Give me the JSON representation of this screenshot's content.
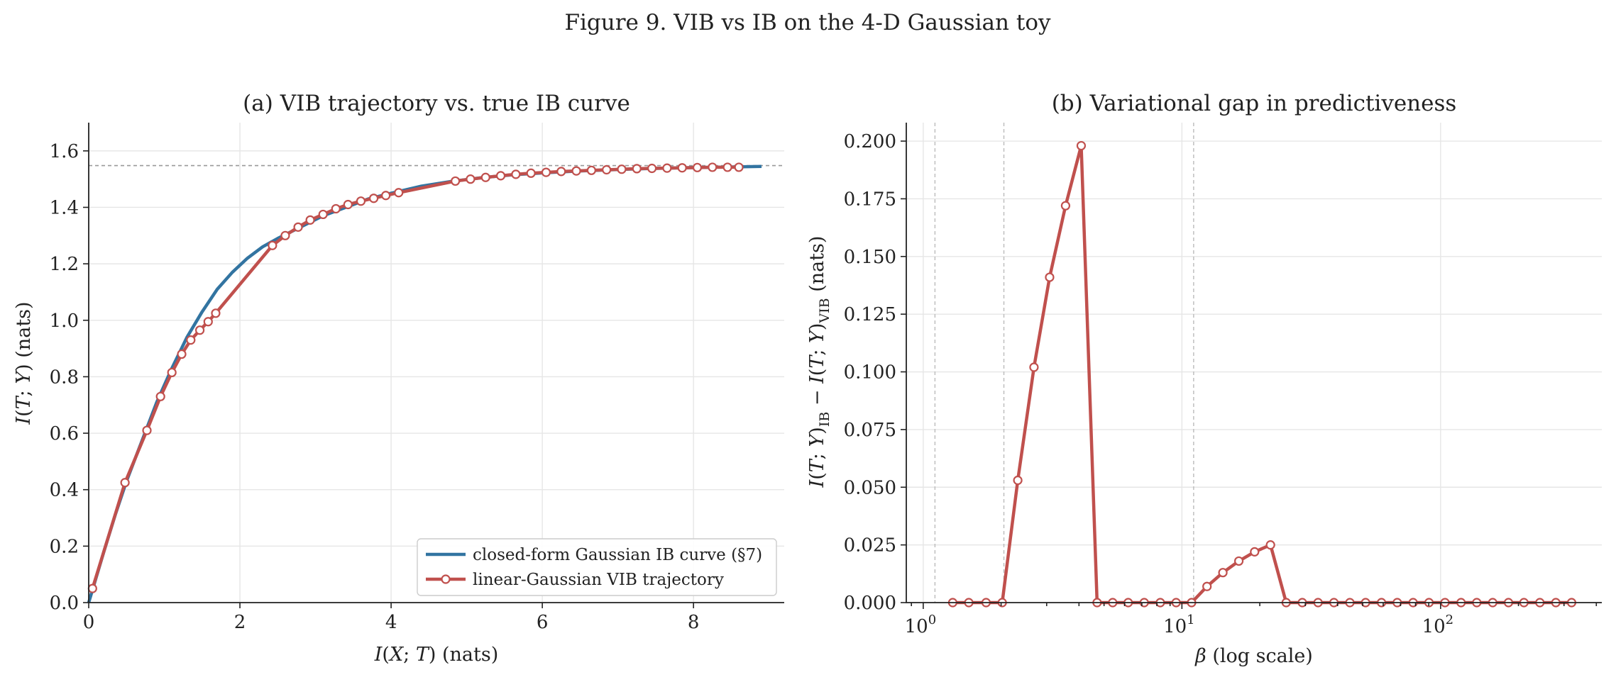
{
  "figure": {
    "suptitle": "Figure 9. VIB vs IB on the 4-D Gaussian toy"
  },
  "colors": {
    "ib_curve": "#3274a1",
    "vib_line": "#c0504d",
    "marker_face": "#ffffff",
    "ref_line": "#999999",
    "vline": "#bbbbbb"
  },
  "chart_data": [
    {
      "type": "line",
      "title": "(a) VIB trajectory vs. true IB curve",
      "xlabel": "I(X;T)  (nats)",
      "ylabel": "I(T;Y)  (nats)",
      "xlim": [
        0,
        9.2
      ],
      "ylim": [
        0,
        1.7
      ],
      "xticks": [
        0,
        2,
        4,
        6,
        8
      ],
      "xtick_labels": [
        "0",
        "2",
        "4",
        "6",
        "8"
      ],
      "yticks": [
        0.0,
        0.2,
        0.4,
        0.6,
        0.8,
        1.0,
        1.2,
        1.4,
        1.6
      ],
      "ytick_labels": [
        "0.0",
        "0.2",
        "0.4",
        "0.6",
        "0.8",
        "1.0",
        "1.2",
        "1.4",
        "1.6"
      ],
      "grid": true,
      "legend_position": "lower-right",
      "hline": 1.548,
      "series": [
        {
          "name": "closed-form Gaussian IB curve (§7)",
          "style": "line",
          "x": [
            0,
            0.1,
            0.2,
            0.35,
            0.5,
            0.7,
            0.9,
            1.1,
            1.3,
            1.5,
            1.7,
            1.9,
            2.1,
            2.3,
            2.5,
            2.8,
            3.1,
            3.4,
            3.7,
            4.0,
            4.4,
            4.8,
            5.2,
            5.6,
            6.0,
            6.5,
            7.0,
            7.5,
            8.0,
            8.5,
            8.9
          ],
          "y": [
            0,
            0.09,
            0.18,
            0.31,
            0.43,
            0.57,
            0.71,
            0.83,
            0.94,
            1.03,
            1.11,
            1.17,
            1.22,
            1.26,
            1.29,
            1.33,
            1.37,
            1.4,
            1.43,
            1.45,
            1.475,
            1.492,
            1.505,
            1.515,
            1.522,
            1.529,
            1.534,
            1.538,
            1.541,
            1.543,
            1.545
          ]
        },
        {
          "name": "linear-Gaussian VIB trajectory",
          "style": "line-markers",
          "x": [
            0.05,
            0.48,
            0.77,
            0.95,
            1.1,
            1.23,
            1.35,
            1.47,
            1.58,
            1.68,
            2.43,
            2.6,
            2.77,
            2.93,
            3.1,
            3.27,
            3.43,
            3.6,
            3.77,
            3.93,
            4.1,
            4.85,
            5.05,
            5.25,
            5.45,
            5.65,
            5.85,
            6.05,
            6.25,
            6.45,
            6.65,
            6.85,
            7.05,
            7.25,
            7.45,
            7.65,
            7.85,
            8.05,
            8.25,
            8.45,
            8.6
          ],
          "y": [
            0.05,
            0.425,
            0.61,
            0.73,
            0.815,
            0.88,
            0.93,
            0.965,
            0.995,
            1.025,
            1.265,
            1.3,
            1.33,
            1.355,
            1.375,
            1.395,
            1.41,
            1.422,
            1.432,
            1.442,
            1.452,
            1.493,
            1.5,
            1.506,
            1.512,
            1.517,
            1.521,
            1.524,
            1.527,
            1.529,
            1.531,
            1.533,
            1.535,
            1.537,
            1.538,
            1.539,
            1.54,
            1.541,
            1.542,
            1.542,
            1.542
          ]
        }
      ]
    },
    {
      "type": "line",
      "title": "(b) Variational gap in predictiveness",
      "xlabel": "β  (log scale)",
      "ylabel": "I(T;Y)IB − I(T;Y)VIB  (nats)",
      "xscale": "log",
      "xlim": [
        0.86,
        420
      ],
      "ylim": [
        0,
        0.208
      ],
      "xticks": [
        1,
        10,
        100
      ],
      "xtick_labels": [
        "10",
        "10",
        "10"
      ],
      "xtick_exponents": [
        "0",
        "1",
        "2"
      ],
      "yticks": [
        0.0,
        0.025,
        0.05,
        0.075,
        0.1,
        0.125,
        0.15,
        0.175,
        0.2
      ],
      "ytick_labels": [
        "0.000",
        "0.025",
        "0.050",
        "0.075",
        "0.100",
        "0.125",
        "0.150",
        "0.175",
        "0.200"
      ],
      "grid": true,
      "vlines": [
        1.11,
        2.05,
        11.1
      ],
      "series": [
        {
          "style": "line-markers",
          "x": [
            1.3,
            1.5,
            1.75,
            2.02,
            2.32,
            2.68,
            3.08,
            3.55,
            4.08,
            4.7,
            5.4,
            6.2,
            7.15,
            8.25,
            9.5,
            10.9,
            12.5,
            14.4,
            16.6,
            19.1,
            22.0,
            25.3,
            29.2,
            33.6,
            38.7,
            44.6,
            51.3,
            59.1,
            68.0,
            78.3,
            90.2,
            104,
            120,
            138,
            159,
            183,
            210,
            242,
            279,
            321
          ],
          "y": [
            0,
            0,
            0,
            0,
            0.053,
            0.102,
            0.141,
            0.172,
            0.198,
            0,
            0,
            0,
            0,
            0,
            0,
            0,
            0.007,
            0.013,
            0.018,
            0.022,
            0.025,
            0,
            0,
            0,
            0,
            0,
            0,
            0,
            0,
            0,
            0,
            0,
            0,
            0,
            0,
            0,
            0,
            0,
            0,
            0
          ]
        }
      ]
    }
  ]
}
